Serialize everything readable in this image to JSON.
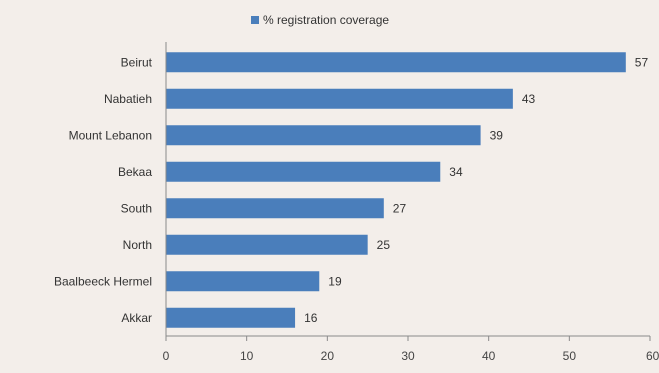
{
  "chart_data": {
    "type": "bar",
    "orientation": "horizontal",
    "categories": [
      "Beirut",
      "Nabatieh",
      "Mount Lebanon",
      "Bekaa",
      "South",
      "North",
      "Baalbeeck Hermel",
      "Akkar"
    ],
    "series": [
      {
        "name": "% registration coverage",
        "values": [
          57,
          43,
          39,
          34,
          27,
          25,
          19,
          16
        ],
        "color": "#4a7ebb"
      }
    ],
    "xlim": [
      0,
      60
    ],
    "xticks": [
      "0",
      "10",
      "20",
      "30",
      "40",
      "50",
      "60"
    ],
    "legend_position": "top",
    "grid": false
  }
}
